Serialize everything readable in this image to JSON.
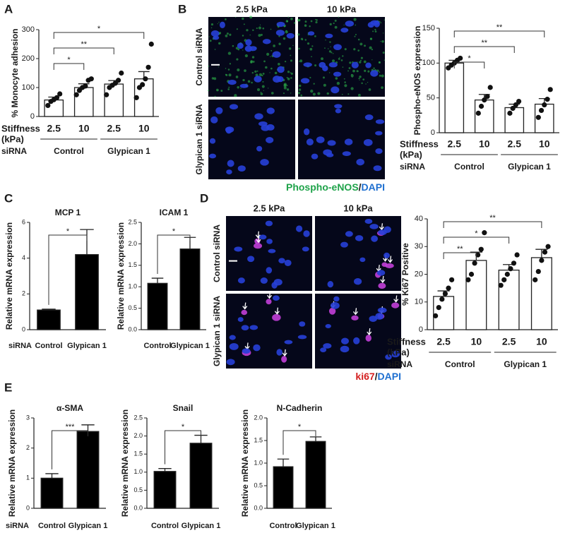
{
  "panels": [
    "A",
    "B",
    "C",
    "D",
    "E"
  ],
  "images": [
    {
      "columns": [
        "2.5 kPa",
        "10 kPa"
      ],
      "rows": [
        "Control siRNA",
        "Glypican 1 siRNA"
      ],
      "caption": [
        "Phospho-eNOS",
        "/",
        "DAPI"
      ],
      "caption_colors": [
        "#1fa34a",
        "#1a1a1a",
        "#1e6fd0"
      ]
    },
    {
      "columns": [
        "2.5 kPa",
        "10 kPa"
      ],
      "rows": [
        "Control siRNA",
        "Glypican 1 siRNA"
      ],
      "caption": [
        "ki67",
        "/",
        "DAPI"
      ],
      "caption_colors": [
        "#d42020",
        "#1a1a1a",
        "#1e6fd0"
      ]
    }
  ],
  "chart_data": [
    {
      "type": "bar",
      "ylabel": "% Monocyte adhesion",
      "categories": [
        "2.5",
        "10",
        "2.5",
        "10"
      ],
      "values": [
        57,
        100,
        112,
        130
      ],
      "errors": [
        10,
        13,
        12,
        25
      ],
      "points": [
        [
          38,
          52,
          58,
          65,
          78
        ],
        [
          75,
          90,
          100,
          105,
          125,
          130
        ],
        [
          75,
          100,
          108,
          115,
          125,
          150
        ],
        [
          65,
          100,
          110,
          130,
          170,
          250
        ]
      ],
      "ylim": [
        0,
        300
      ],
      "yticks": [
        0,
        100,
        200,
        300
      ],
      "color": "#ffffff",
      "significance": [
        {
          "from": 0,
          "to": 3,
          "label": "*"
        },
        {
          "from": 0,
          "to": 2,
          "label": "**"
        },
        {
          "from": 0,
          "to": 1,
          "label": "*"
        }
      ],
      "xlabel": [
        "Stiffness",
        "(kPa)"
      ],
      "group_label": "siRNA",
      "groups": [
        {
          "label": "Control",
          "from": 0,
          "to": 1
        },
        {
          "label": "Glypican 1",
          "from": 2,
          "to": 3
        }
      ]
    },
    {
      "type": "bar",
      "ylabel": "Phospho-eNOS expression",
      "categories": [
        "2.5",
        "10",
        "2.5",
        "10"
      ],
      "values": [
        100,
        47,
        36,
        41
      ],
      "errors": [
        4,
        8,
        5,
        8
      ],
      "points": [
        [
          93,
          97,
          100,
          104,
          107
        ],
        [
          28,
          38,
          47,
          52,
          65
        ],
        [
          28,
          35,
          40,
          45
        ],
        [
          22,
          32,
          40,
          48,
          62
        ]
      ],
      "ylim": [
        0,
        150
      ],
      "yticks": [
        0,
        50,
        100,
        150
      ],
      "color": "#ffffff",
      "significance": [
        {
          "from": 0,
          "to": 3,
          "label": "**"
        },
        {
          "from": 0,
          "to": 2,
          "label": "**"
        },
        {
          "from": 0,
          "to": 1,
          "label": "*"
        }
      ],
      "xlabel": [
        "Stiffness",
        "(kPa)"
      ],
      "group_label": "siRNA",
      "groups": [
        {
          "label": "Control",
          "from": 0,
          "to": 1
        },
        {
          "label": "Glypican 1",
          "from": 2,
          "to": 3
        }
      ]
    },
    {
      "type": "bar",
      "title": "MCP 1",
      "ylabel": "Relative mRNA expression",
      "categories": [
        "Control",
        "Glypican 1"
      ],
      "values": [
        1.1,
        4.2
      ],
      "errors": [
        0.05,
        1.4
      ],
      "ylim": [
        0,
        6
      ],
      "yticks": [
        0,
        2,
        4,
        6
      ],
      "color": "#000000",
      "significance": [
        {
          "from": 0,
          "to": 1,
          "label": "*"
        }
      ],
      "group_label": "siRNA"
    },
    {
      "type": "bar",
      "title": "ICAM 1",
      "ylabel": "Relative mRNA expression",
      "categories": [
        "Control",
        "Glypican 1"
      ],
      "values": [
        1.08,
        1.88
      ],
      "errors": [
        0.12,
        0.27
      ],
      "ylim": [
        0,
        2.5
      ],
      "yticks": [
        {
          "value": 0,
          "label": "0.0"
        },
        0.5,
        {
          "value": 1,
          "label": "1.0"
        },
        1.5,
        {
          "value": 2,
          "label": "2.0"
        },
        2.5
      ],
      "color": "#000000",
      "significance": [
        {
          "from": 0,
          "to": 1,
          "label": "*"
        }
      ]
    },
    {
      "type": "bar",
      "ylabel": "% Ki67 Positive",
      "categories": [
        "2.5",
        "10",
        "2.5",
        "10"
      ],
      "values": [
        12,
        25,
        21.5,
        26
      ],
      "errors": [
        2,
        3,
        2,
        3
      ],
      "points": [
        [
          5,
          8,
          11,
          13,
          15,
          18
        ],
        [
          18,
          20,
          24,
          27,
          29,
          35
        ],
        [
          16,
          18,
          20,
          22,
          24,
          27
        ],
        [
          18,
          21,
          25,
          28,
          30
        ]
      ],
      "ylim": [
        0,
        40
      ],
      "yticks": [
        0,
        10,
        20,
        30,
        40
      ],
      "color": "#ffffff",
      "significance": [
        {
          "from": 0,
          "to": 3,
          "label": "**"
        },
        {
          "from": 0,
          "to": 2,
          "label": "*"
        },
        {
          "from": 0,
          "to": 1,
          "label": "**"
        }
      ],
      "xlabel": [
        "Stiffness",
        "(kPa)"
      ],
      "group_label": "siRNA",
      "groups": [
        {
          "label": "Control",
          "from": 0,
          "to": 1
        },
        {
          "label": "Glypican 1",
          "from": 2,
          "to": 3
        }
      ]
    },
    {
      "type": "bar",
      "title": "α-SMA",
      "ylabel": "Relative mRNA expression",
      "categories": [
        "Control",
        "Glypican 1"
      ],
      "values": [
        1.0,
        2.55
      ],
      "errors": [
        0.15,
        0.22
      ],
      "ylim": [
        0,
        3
      ],
      "yticks": [
        0,
        1,
        2,
        3
      ],
      "color": "#000000",
      "significance": [
        {
          "from": 0,
          "to": 1,
          "label": "***"
        }
      ],
      "group_label": "siRNA"
    },
    {
      "type": "bar",
      "title": "Snail",
      "ylabel": "Relative mRNA expression",
      "categories": [
        "Control",
        "Glypican 1"
      ],
      "values": [
        1.02,
        1.8
      ],
      "errors": [
        0.08,
        0.22
      ],
      "ylim": [
        0,
        2.5
      ],
      "yticks": [
        {
          "value": 0,
          "label": "0.0"
        },
        0.5,
        {
          "value": 1,
          "label": "1.0"
        },
        1.5,
        {
          "value": 2,
          "label": "2.0"
        },
        2.5
      ],
      "color": "#000000",
      "significance": [
        {
          "from": 0,
          "to": 1,
          "label": "*"
        }
      ]
    },
    {
      "type": "bar",
      "title": "N-Cadherin",
      "ylabel": "Relative mRNA expression",
      "categories": [
        "Control",
        "Glypican 1"
      ],
      "values": [
        0.92,
        1.48
      ],
      "errors": [
        0.17,
        0.1
      ],
      "ylim": [
        0,
        2
      ],
      "yticks": [
        {
          "value": 0,
          "label": "0.0"
        },
        0.5,
        {
          "value": 1,
          "label": "1.0"
        },
        1.5,
        {
          "value": 2,
          "label": "2.0"
        }
      ],
      "color": "#000000",
      "significance": [
        {
          "from": 0,
          "to": 1,
          "label": "*"
        }
      ]
    }
  ]
}
